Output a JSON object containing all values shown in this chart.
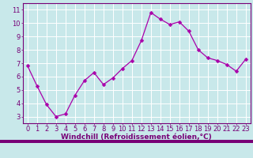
{
  "x": [
    0,
    1,
    2,
    3,
    4,
    5,
    6,
    7,
    8,
    9,
    10,
    11,
    12,
    13,
    14,
    15,
    16,
    17,
    18,
    19,
    20,
    21,
    22,
    23
  ],
  "y": [
    6.8,
    5.3,
    3.9,
    3.0,
    3.2,
    4.6,
    5.7,
    6.3,
    5.4,
    5.9,
    6.6,
    7.2,
    8.7,
    10.8,
    10.3,
    9.9,
    10.1,
    9.4,
    8.0,
    7.4,
    7.2,
    6.9,
    6.4,
    7.3
  ],
  "line_color": "#aa00aa",
  "marker": "D",
  "marker_size": 2.5,
  "bg_color": "#c8e8ea",
  "grid_color": "#b0d8dc",
  "xlabel": "Windchill (Refroidissement éolien,°C)",
  "xlabel_color": "#770077",
  "tick_color": "#770077",
  "xlim": [
    -0.5,
    23.5
  ],
  "ylim": [
    2.5,
    11.5
  ],
  "yticks": [
    3,
    4,
    5,
    6,
    7,
    8,
    9,
    10,
    11
  ],
  "xticks": [
    0,
    1,
    2,
    3,
    4,
    5,
    6,
    7,
    8,
    9,
    10,
    11,
    12,
    13,
    14,
    15,
    16,
    17,
    18,
    19,
    20,
    21,
    22,
    23
  ],
  "spine_color": "#770077",
  "label_fontsize": 6.5,
  "tick_fontsize": 6.0,
  "bottom_bar_color": "#770077",
  "bottom_bar_height": 0.09
}
